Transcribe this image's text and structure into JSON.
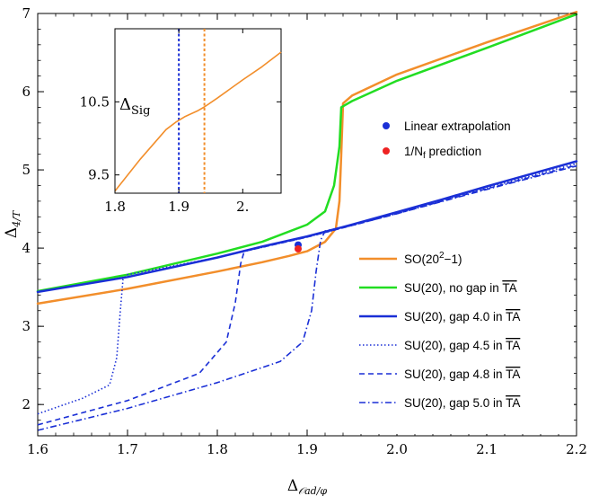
{
  "chart_data": [
    {
      "type": "line",
      "xlim": [
        1.6,
        2.2
      ],
      "ylim": [
        1.6,
        7
      ],
      "x_ticks": [
        "1.6",
        "1.7",
        "1.8",
        "1.9",
        "2.0",
        "2.1",
        "2.2"
      ],
      "y_ticks": [
        "2",
        "3",
        "4",
        "5",
        "6",
        "7"
      ],
      "xlabel": {
        "main": "Δ",
        "sub": "𝒪ad/φ"
      },
      "ylabel": {
        "main": "Δ",
        "sub": "4/T"
      },
      "series": [
        {
          "name": "SO(20²−1)",
          "label_main": "SO(20",
          "label_sup": "2",
          "label_end": "−1)",
          "color": "#f28e2b",
          "dash": "solid",
          "points": [
            [
              1.6,
              3.29
            ],
            [
              1.7,
              3.48
            ],
            [
              1.8,
              3.7
            ],
            [
              1.85,
              3.82
            ],
            [
              1.88,
              3.9
            ],
            [
              1.9,
              3.96
            ],
            [
              1.92,
              4.08
            ],
            [
              1.932,
              4.25
            ],
            [
              1.936,
              4.6
            ],
            [
              1.938,
              5.2
            ],
            [
              1.94,
              5.85
            ],
            [
              1.95,
              5.95
            ],
            [
              2.0,
              6.22
            ],
            [
              2.1,
              6.63
            ],
            [
              2.2,
              7.02
            ]
          ]
        },
        {
          "name": "SU(20), no gap in TA",
          "label_main": "SU(20), no gap in ",
          "label_over": "TA",
          "color": "#22dd22",
          "dash": "solid",
          "points": [
            [
              1.6,
              3.45
            ],
            [
              1.7,
              3.66
            ],
            [
              1.8,
              3.93
            ],
            [
              1.85,
              4.08
            ],
            [
              1.9,
              4.3
            ],
            [
              1.92,
              4.47
            ],
            [
              1.93,
              4.8
            ],
            [
              1.936,
              5.3
            ],
            [
              1.938,
              5.8
            ],
            [
              1.95,
              5.88
            ],
            [
              2.0,
              6.14
            ],
            [
              2.1,
              6.56
            ],
            [
              2.2,
              6.99
            ]
          ]
        },
        {
          "name": "SU(20), gap 4.0 in TA",
          "label_main": "SU(20), gap 4.0 in ",
          "label_over": "TA",
          "color": "#1a2fd6",
          "dash": "solid",
          "points": [
            [
              1.6,
              3.44
            ],
            [
              1.7,
              3.63
            ],
            [
              1.8,
              3.88
            ],
            [
              1.85,
              4.02
            ],
            [
              1.9,
              4.15
            ],
            [
              1.95,
              4.3
            ],
            [
              2.0,
              4.46
            ],
            [
              2.05,
              4.62
            ],
            [
              2.1,
              4.79
            ],
            [
              2.15,
              4.95
            ],
            [
              2.2,
              5.11
            ]
          ]
        },
        {
          "name": "SU(20), gap 4.5 in TA",
          "label_main": "SU(20), gap 4.5 in ",
          "label_over": "TA",
          "color": "#1a2fd6",
          "dash": "dotted",
          "points": [
            [
              1.6,
              1.88
            ],
            [
              1.65,
              2.08
            ],
            [
              1.68,
              2.25
            ],
            [
              1.688,
              2.6
            ],
            [
              1.692,
              3.2
            ],
            [
              1.695,
              3.6
            ],
            [
              1.7,
              3.66
            ],
            [
              1.75,
              3.77
            ],
            [
              1.8,
              3.88
            ],
            [
              1.85,
              4.01
            ],
            [
              1.9,
              4.14
            ],
            [
              1.95,
              4.29
            ],
            [
              2.0,
              4.45
            ],
            [
              2.1,
              4.77
            ],
            [
              2.2,
              5.08
            ]
          ]
        },
        {
          "name": "SU(20), gap 4.8 in TA",
          "label_main": "SU(20), gap 4.8 in ",
          "label_over": "TA",
          "color": "#1a2fd6",
          "dash": "dashed",
          "points": [
            [
              1.6,
              1.74
            ],
            [
              1.7,
              2.05
            ],
            [
              1.78,
              2.4
            ],
            [
              1.81,
              2.8
            ],
            [
              1.82,
              3.3
            ],
            [
              1.826,
              3.8
            ],
            [
              1.83,
              3.96
            ],
            [
              1.85,
              4.01
            ],
            [
              1.9,
              4.14
            ],
            [
              1.95,
              4.29
            ],
            [
              2.0,
              4.44
            ],
            [
              2.1,
              4.76
            ],
            [
              2.2,
              5.06
            ]
          ]
        },
        {
          "name": "SU(20), gap 5.0 in TA",
          "label_main": "SU(20), gap 5.0 in ",
          "label_over": "TA",
          "color": "#1a2fd6",
          "dash": "dashdot",
          "points": [
            [
              1.6,
              1.67
            ],
            [
              1.7,
              1.95
            ],
            [
              1.8,
              2.28
            ],
            [
              1.87,
              2.55
            ],
            [
              1.895,
              2.8
            ],
            [
              1.905,
              3.2
            ],
            [
              1.91,
              3.7
            ],
            [
              1.915,
              4.1
            ],
            [
              1.92,
              4.22
            ],
            [
              1.95,
              4.29
            ],
            [
              2.0,
              4.44
            ],
            [
              2.1,
              4.75
            ],
            [
              2.2,
              5.05
            ]
          ]
        }
      ],
      "points": [
        {
          "name": "Linear extrapolation",
          "x": 1.89,
          "y": 4.04,
          "color": "#1a2fd6",
          "label": "Linear extrapolation"
        },
        {
          "name": "1/Nf prediction",
          "x": 1.89,
          "y": 3.99,
          "color": "#ee2222",
          "label_main": "1/N",
          "label_sub": "f",
          "label_end": " prediction"
        }
      ]
    },
    {
      "type": "line",
      "panel": "inset",
      "xlim": [
        1.8,
        2.06
      ],
      "ylim": [
        9.25,
        11.5
      ],
      "x_ticks": [
        "1.8",
        "1.9",
        "2."
      ],
      "y_ticks": [
        "10.5",
        "9.5"
      ],
      "ylabel": {
        "main": "Δ",
        "sub": "Sig"
      },
      "series": [
        {
          "color": "#f28e2b",
          "points": [
            [
              1.8,
              9.28
            ],
            [
              1.84,
              9.72
            ],
            [
              1.88,
              10.12
            ],
            [
              1.895,
              10.22
            ],
            [
              1.91,
              10.3
            ],
            [
              1.93,
              10.38
            ],
            [
              1.94,
              10.43
            ],
            [
              1.96,
              10.55
            ],
            [
              2.0,
              10.8
            ],
            [
              2.03,
              10.98
            ],
            [
              2.06,
              11.18
            ]
          ]
        }
      ],
      "vlines": [
        {
          "x": 1.9,
          "color": "#1a2fd6"
        },
        {
          "x": 1.94,
          "color": "#f28e2b"
        }
      ]
    }
  ]
}
